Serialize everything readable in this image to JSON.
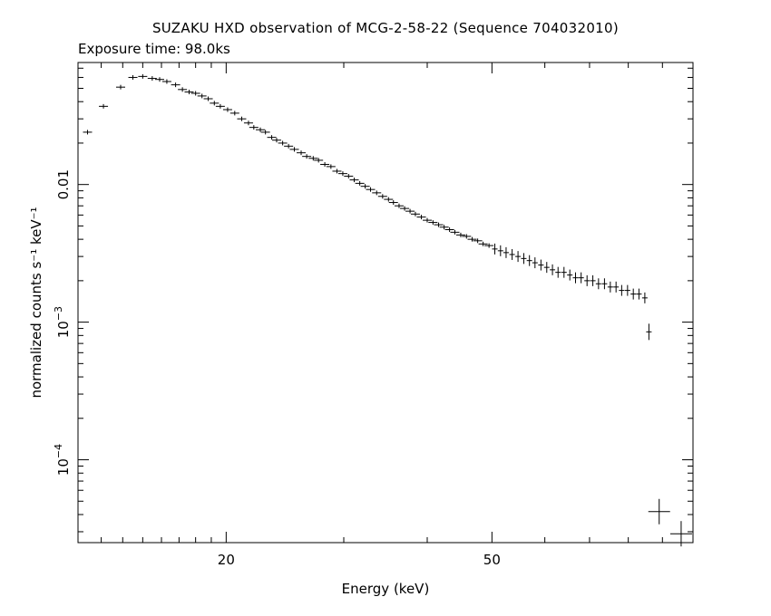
{
  "chart_data": {
    "type": "scatter",
    "title": "SUZAKU HXD observation of MCG-2-58-22 (Sequence 704032010)",
    "subtitle": "Exposure time: 98.0ks",
    "xlabel": "Energy (keV)",
    "ylabel": "normalized counts s⁻¹ keV⁻¹",
    "x_scale": "log",
    "y_scale": "log",
    "xlim": [
      12,
      100
    ],
    "ylim": [
      2.5e-05,
      0.077
    ],
    "x_ticks": [
      {
        "value": 20,
        "label": "20"
      },
      {
        "value": 50,
        "label": "50"
      }
    ],
    "y_ticks": [
      {
        "value": 0.0001,
        "base": "10",
        "exp": "−4"
      },
      {
        "value": 0.001,
        "base": "10",
        "exp": "−3"
      },
      {
        "value": 0.01,
        "label": "0.01"
      }
    ],
    "grid": false,
    "series": [
      {
        "points": [
          [
            12.4,
            0.024
          ],
          [
            13.1,
            0.037
          ],
          [
            13.9,
            0.051
          ],
          [
            14.5,
            0.06
          ],
          [
            15.0,
            0.061
          ],
          [
            15.5,
            0.059
          ],
          [
            15.9,
            0.058
          ],
          [
            16.3,
            0.056
          ],
          [
            16.8,
            0.053
          ],
          [
            17.2,
            0.049
          ],
          [
            17.6,
            0.047
          ],
          [
            18.0,
            0.046
          ],
          [
            18.4,
            0.044
          ],
          [
            18.8,
            0.042
          ],
          [
            19.2,
            0.039
          ],
          [
            19.6,
            0.037
          ],
          [
            20.1,
            0.035
          ],
          [
            20.6,
            0.033
          ],
          [
            21.1,
            0.03
          ],
          [
            21.6,
            0.028
          ],
          [
            22.0,
            0.026
          ],
          [
            22.5,
            0.025
          ],
          [
            22.9,
            0.024
          ],
          [
            23.4,
            0.022
          ],
          [
            23.8,
            0.021
          ],
          [
            24.3,
            0.02
          ],
          [
            24.8,
            0.019
          ],
          [
            25.3,
            0.018
          ],
          [
            25.9,
            0.017
          ],
          [
            26.4,
            0.016
          ],
          [
            27.0,
            0.0155
          ],
          [
            27.5,
            0.015
          ],
          [
            28.1,
            0.014
          ],
          [
            28.7,
            0.0135
          ],
          [
            29.3,
            0.0125
          ],
          [
            29.9,
            0.012
          ],
          [
            30.5,
            0.0115
          ],
          [
            31.1,
            0.0108
          ],
          [
            31.7,
            0.0102
          ],
          [
            32.3,
            0.0097
          ],
          [
            32.9,
            0.0092
          ],
          [
            33.6,
            0.0087
          ],
          [
            34.3,
            0.0082
          ],
          [
            35.0,
            0.0078
          ],
          [
            35.6,
            0.0074
          ],
          [
            36.3,
            0.007
          ],
          [
            37.0,
            0.0067
          ],
          [
            37.7,
            0.0064
          ],
          [
            38.4,
            0.0061
          ],
          [
            39.2,
            0.0058
          ],
          [
            40.0,
            0.0055
          ],
          [
            40.8,
            0.0053
          ],
          [
            41.6,
            0.0051
          ],
          [
            42.4,
            0.0049
          ],
          [
            43.2,
            0.0047
          ],
          [
            44.0,
            0.0045
          ],
          [
            44.9,
            0.0043
          ],
          [
            45.8,
            0.0042
          ],
          [
            46.7,
            0.004
          ],
          [
            47.6,
            0.0039
          ],
          [
            48.5,
            0.0037
          ],
          [
            49.5,
            0.0036
          ],
          [
            50.5,
            0.0034
          ],
          [
            51.5,
            0.0033
          ],
          [
            52.5,
            0.0032
          ],
          [
            53.6,
            0.0031
          ],
          [
            54.7,
            0.003
          ],
          [
            55.8,
            0.0029
          ],
          [
            56.9,
            0.0028
          ],
          [
            58.0,
            0.0027
          ],
          [
            59.2,
            0.0026
          ],
          [
            60.4,
            0.0025
          ],
          [
            61.6,
            0.0024
          ],
          [
            62.8,
            0.0023
          ],
          [
            64.1,
            0.0023
          ],
          [
            65.4,
            0.0022
          ],
          [
            66.7,
            0.0021
          ],
          [
            68.0,
            0.0021
          ],
          [
            69.4,
            0.002
          ],
          [
            70.8,
            0.002
          ],
          [
            72.2,
            0.0019
          ],
          [
            73.7,
            0.0019
          ],
          [
            75.2,
            0.0018
          ],
          [
            76.7,
            0.0018
          ],
          [
            78.2,
            0.0017
          ],
          [
            79.8,
            0.0017
          ],
          [
            81.4,
            0.0016
          ],
          [
            83.0,
            0.0016
          ],
          [
            84.7,
            0.0015
          ],
          [
            85.9,
            0.00085
          ],
          [
            89.0,
            4.2e-05
          ],
          [
            96.0,
            2.9e-05
          ]
        ]
      }
    ]
  }
}
